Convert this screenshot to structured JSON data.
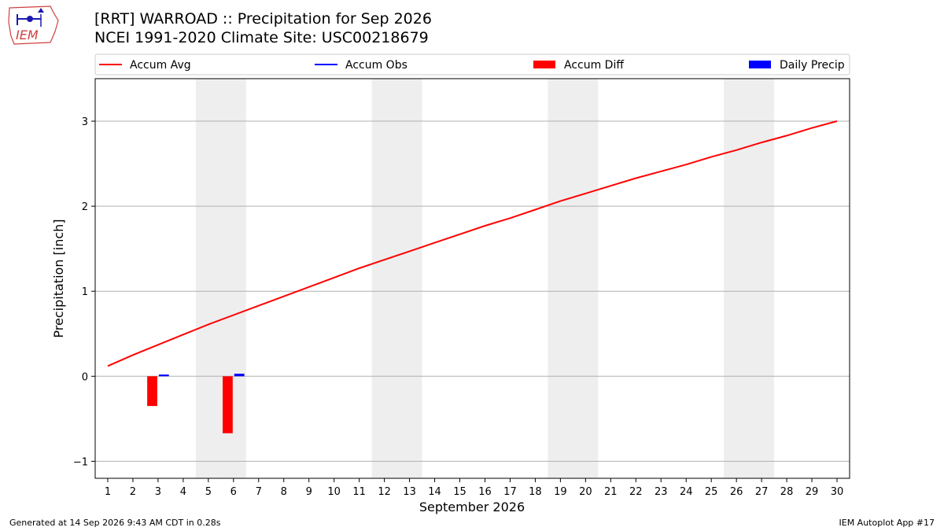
{
  "header": {
    "title_line1": "[RRT] WARROAD :: Precipitation for Sep 2026",
    "title_line2": "NCEI 1991-2020 Climate Site: USC00218679",
    "logo_text": "IEM"
  },
  "footer": {
    "left": "Generated at 14 Sep 2026 9:43 AM CDT in 0.28s",
    "right": "IEM Autoplot App #17"
  },
  "colors": {
    "accum_avg": "#ff0000",
    "accum_obs": "#0000ff",
    "accum_diff": "#ff0000",
    "daily_precip": "#0000ff",
    "weekend_shade": "#eeeeee",
    "grid": "#b0b0b0"
  },
  "chart_data": {
    "type": "line",
    "xlabel": "September 2026",
    "ylabel": "Precipitation [inch]",
    "ylim": [
      -1.2,
      3.5
    ],
    "xlim": [
      0.5,
      30.5
    ],
    "grid": "horizontal",
    "legend_placement": "top",
    "x": [
      1,
      2,
      3,
      4,
      5,
      6,
      7,
      8,
      9,
      10,
      11,
      12,
      13,
      14,
      15,
      16,
      17,
      18,
      19,
      20,
      21,
      22,
      23,
      24,
      25,
      26,
      27,
      28,
      29,
      30
    ],
    "x_tick_labels": [
      "1",
      "2",
      "3",
      "4",
      "5",
      "6",
      "7",
      "8",
      "9",
      "10",
      "11",
      "12",
      "13",
      "14",
      "15",
      "16",
      "17",
      "18",
      "19",
      "20",
      "21",
      "22",
      "23",
      "24",
      "25",
      "26",
      "27",
      "28",
      "29",
      "30"
    ],
    "y_ticks": [
      -1,
      0,
      1,
      2,
      3
    ],
    "y_tick_labels": [
      "−1",
      "0",
      "1",
      "2",
      "3"
    ],
    "weekend_spans": [
      [
        4.5,
        6.5
      ],
      [
        11.5,
        13.5
      ],
      [
        18.5,
        20.5
      ],
      [
        25.5,
        27.5
      ]
    ],
    "legend": [
      {
        "label": "Accum Avg",
        "kind": "line",
        "color": "#ff0000"
      },
      {
        "label": "Accum Obs",
        "kind": "line",
        "color": "#0000ff"
      },
      {
        "label": "Accum Diff",
        "kind": "bar",
        "color": "#ff0000"
      },
      {
        "label": "Daily Precip",
        "kind": "bar",
        "color": "#0000ff"
      }
    ],
    "series": [
      {
        "name": "Accum Avg",
        "type": "line",
        "values": [
          0.12,
          0.25,
          0.37,
          0.49,
          0.61,
          0.72,
          0.83,
          0.94,
          1.05,
          1.16,
          1.27,
          1.37,
          1.47,
          1.57,
          1.67,
          1.77,
          1.86,
          1.96,
          2.06,
          2.15,
          2.24,
          2.33,
          2.41,
          2.49,
          2.58,
          2.66,
          2.75,
          2.83,
          2.92,
          3.0
        ]
      },
      {
        "name": "Accum Diff",
        "type": "bar",
        "points": [
          {
            "x": 3,
            "y": -0.35
          },
          {
            "x": 6,
            "y": -0.67
          }
        ]
      },
      {
        "name": "Daily Precip",
        "type": "bar",
        "points": [
          {
            "x": 3,
            "y": 0.02
          },
          {
            "x": 6,
            "y": 0.03
          }
        ]
      }
    ]
  }
}
